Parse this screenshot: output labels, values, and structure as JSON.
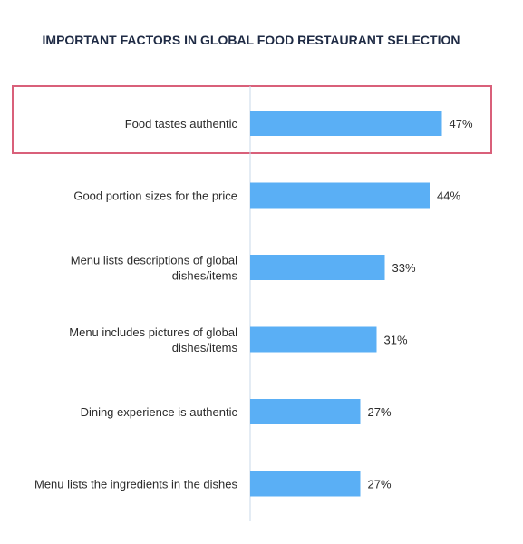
{
  "chart_data": {
    "type": "bar",
    "orientation": "horizontal",
    "title": "IMPORTANT FACTORS IN GLOBAL FOOD RESTAURANT SELECTION",
    "categories": [
      [
        "Food tastes authentic"
      ],
      [
        "Good portion sizes for the price"
      ],
      [
        "Menu lists descriptions of global",
        "dishes/items"
      ],
      [
        "Menu includes pictures of global",
        "dishes/items"
      ],
      [
        "Dining experience is authentic"
      ],
      [
        "Menu lists the ingredients in the dishes"
      ]
    ],
    "values": [
      47,
      44,
      33,
      31,
      27,
      27
    ],
    "value_labels": [
      "47%",
      "44%",
      "33%",
      "31%",
      "27%",
      "27%"
    ],
    "xlim": [
      0,
      100
    ],
    "highlighted_index": 0,
    "grid": false,
    "colors": {
      "bar": "#5aaff5",
      "highlight_border": "#d9607a",
      "axis_line": "#c9d8ea",
      "title": "#1e2a44",
      "text": "#2b2b2b"
    }
  }
}
